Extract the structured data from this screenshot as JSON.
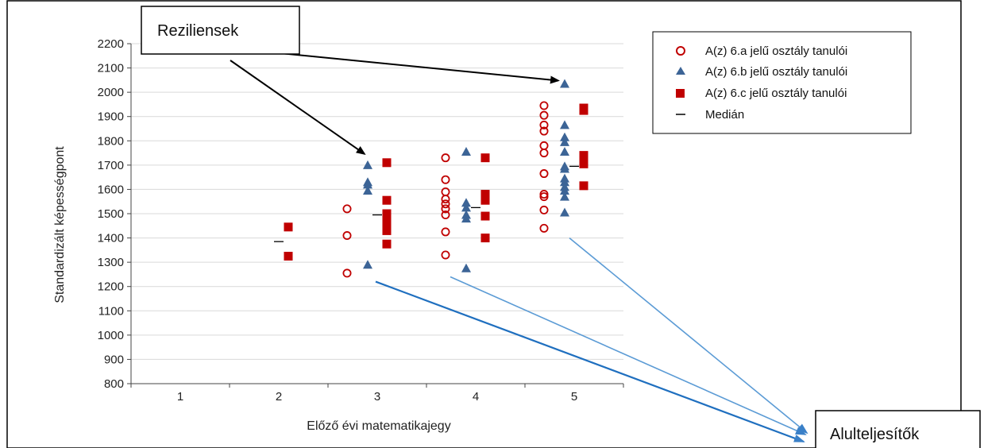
{
  "chart_data": {
    "type": "scatter",
    "xlabel": "Előző évi matematikajegy",
    "ylabel": "Standardizált képességpont",
    "categories": [
      "1",
      "2",
      "3",
      "4",
      "5"
    ],
    "ylim": [
      800,
      2200
    ],
    "yticks": [
      800,
      900,
      1000,
      1100,
      1200,
      1300,
      1400,
      1500,
      1600,
      1700,
      1800,
      1900,
      2000,
      2100,
      2200
    ],
    "grid": true,
    "legend_position": "top-right",
    "series": [
      {
        "name": "A(z) 6.a jelű osztály tanulói",
        "marker": "circle-open",
        "color": "#c00000",
        "points": [
          {
            "grade": 3,
            "y": 1520
          },
          {
            "grade": 3,
            "y": 1410
          },
          {
            "grade": 3,
            "y": 1255
          },
          {
            "grade": 4,
            "y": 1730
          },
          {
            "grade": 4,
            "y": 1640
          },
          {
            "grade": 4,
            "y": 1590
          },
          {
            "grade": 4,
            "y": 1560
          },
          {
            "grade": 4,
            "y": 1540
          },
          {
            "grade": 4,
            "y": 1520
          },
          {
            "grade": 4,
            "y": 1495
          },
          {
            "grade": 4,
            "y": 1425
          },
          {
            "grade": 4,
            "y": 1330
          },
          {
            "grade": 5,
            "y": 1945
          },
          {
            "grade": 5,
            "y": 1905
          },
          {
            "grade": 5,
            "y": 1865
          },
          {
            "grade": 5,
            "y": 1840
          },
          {
            "grade": 5,
            "y": 1780
          },
          {
            "grade": 5,
            "y": 1750
          },
          {
            "grade": 5,
            "y": 1665
          },
          {
            "grade": 5,
            "y": 1580
          },
          {
            "grade": 5,
            "y": 1570
          },
          {
            "grade": 5,
            "y": 1515
          },
          {
            "grade": 5,
            "y": 1440
          }
        ]
      },
      {
        "name": "A(z) 6.b jelű osztály tanulói",
        "marker": "triangle",
        "color": "#3c6496",
        "points": [
          {
            "grade": 3,
            "y": 1700
          },
          {
            "grade": 3,
            "y": 1630
          },
          {
            "grade": 3,
            "y": 1620
          },
          {
            "grade": 3,
            "y": 1595
          },
          {
            "grade": 3,
            "y": 1290
          },
          {
            "grade": 4,
            "y": 1755
          },
          {
            "grade": 4,
            "y": 1545
          },
          {
            "grade": 4,
            "y": 1525
          },
          {
            "grade": 4,
            "y": 1495
          },
          {
            "grade": 4,
            "y": 1480
          },
          {
            "grade": 4,
            "y": 1275
          },
          {
            "grade": 5,
            "y": 2035
          },
          {
            "grade": 5,
            "y": 1865
          },
          {
            "grade": 5,
            "y": 1815
          },
          {
            "grade": 5,
            "y": 1795
          },
          {
            "grade": 5,
            "y": 1755
          },
          {
            "grade": 5,
            "y": 1695
          },
          {
            "grade": 5,
            "y": 1685
          },
          {
            "grade": 5,
            "y": 1645
          },
          {
            "grade": 5,
            "y": 1630
          },
          {
            "grade": 5,
            "y": 1610
          },
          {
            "grade": 5,
            "y": 1595
          },
          {
            "grade": 5,
            "y": 1570
          },
          {
            "grade": 5,
            "y": 1505
          }
        ]
      },
      {
        "name": "A(z) 6.c jelű osztály tanulói",
        "marker": "square",
        "color": "#c00000",
        "points": [
          {
            "grade": 2,
            "y": 1445
          },
          {
            "grade": 2,
            "y": 1325
          },
          {
            "grade": 3,
            "y": 1710
          },
          {
            "grade": 3,
            "y": 1555
          },
          {
            "grade": 3,
            "y": 1500
          },
          {
            "grade": 3,
            "y": 1485
          },
          {
            "grade": 3,
            "y": 1455
          },
          {
            "grade": 3,
            "y": 1430
          },
          {
            "grade": 3,
            "y": 1375
          },
          {
            "grade": 4,
            "y": 1730
          },
          {
            "grade": 4,
            "y": 1580
          },
          {
            "grade": 4,
            "y": 1555
          },
          {
            "grade": 4,
            "y": 1490
          },
          {
            "grade": 4,
            "y": 1400
          },
          {
            "grade": 5,
            "y": 1935
          },
          {
            "grade": 5,
            "y": 1925
          },
          {
            "grade": 5,
            "y": 1740
          },
          {
            "grade": 5,
            "y": 1720
          },
          {
            "grade": 5,
            "y": 1705
          },
          {
            "grade": 5,
            "y": 1615
          }
        ]
      }
    ],
    "median": {
      "name": "Medián",
      "marker": "dash",
      "color": "#000000",
      "points": [
        {
          "grade": 2,
          "y": 1385
        },
        {
          "grade": 3,
          "y": 1495
        },
        {
          "grade": 4,
          "y": 1525
        },
        {
          "grade": 5,
          "y": 1695
        }
      ]
    },
    "annotations": [
      {
        "text": "Reziliensek",
        "arrow_color": "#000000",
        "arrow_targets": [
          {
            "grade": 3,
            "y": 1700
          },
          {
            "grade": 5,
            "y": 2035
          }
        ]
      },
      {
        "text": "Alulteljesítők",
        "arrow_color": "#3a80c8",
        "arrow_sources": [
          {
            "grade": 3,
            "y": 1230
          },
          {
            "grade": 4,
            "y": 1240
          },
          {
            "grade": 5,
            "y": 1400
          }
        ]
      }
    ]
  }
}
